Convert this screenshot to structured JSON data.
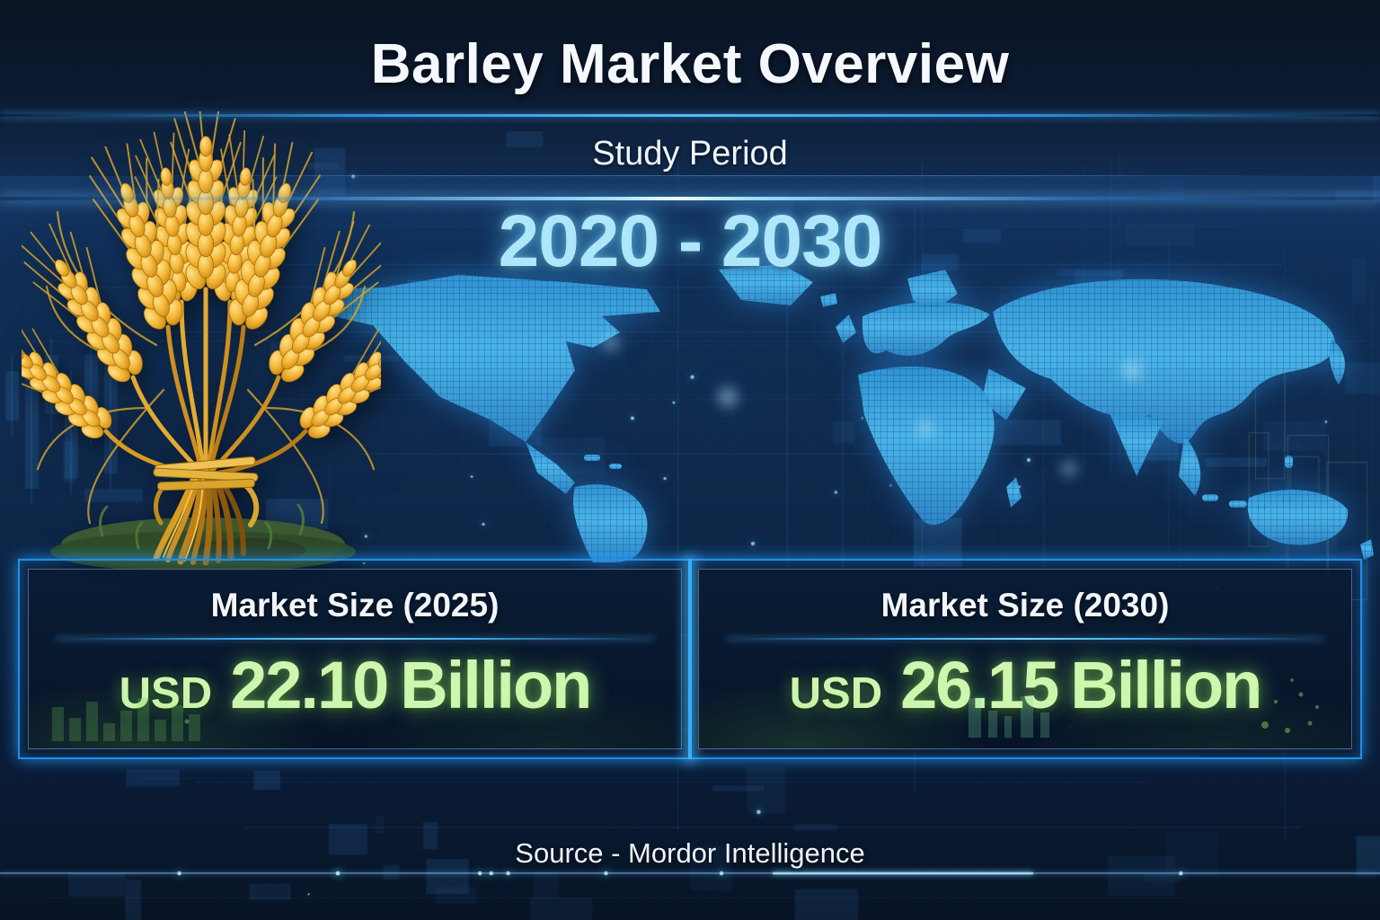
{
  "header": {
    "title": "Barley Market Overview"
  },
  "study_period": {
    "label": "Study Period",
    "range": "2020 - 2030"
  },
  "market_cards": [
    {
      "label": "Market Size (2025)",
      "currency": "USD",
      "amount": "22.10",
      "unit": "Billion"
    },
    {
      "label": "Market Size (2030)",
      "currency": "USD",
      "amount": "26.15",
      "unit": "Billion"
    }
  ],
  "footer": {
    "source_text": "Source - Mordor Intelligence"
  },
  "icons": {
    "wheat": "wheat-sheaf-illustration",
    "map": "digital-world-map"
  },
  "colors": {
    "background_navy": "#0d2546",
    "accent_blue": "#35b0ff",
    "period_cyan": "#aee7fb",
    "value_green": "#cdf6ae",
    "map_blue": "#4ab6e8",
    "title_white": "#f5f8fd"
  },
  "chart_data": {
    "type": "table",
    "title": "Barley Market Overview",
    "study_period": "2020 - 2030",
    "categories": [
      "Market Size (2025)",
      "Market Size (2030)"
    ],
    "values": [
      22.1,
      26.15
    ],
    "unit": "USD Billion",
    "source": "Mordor Intelligence"
  }
}
